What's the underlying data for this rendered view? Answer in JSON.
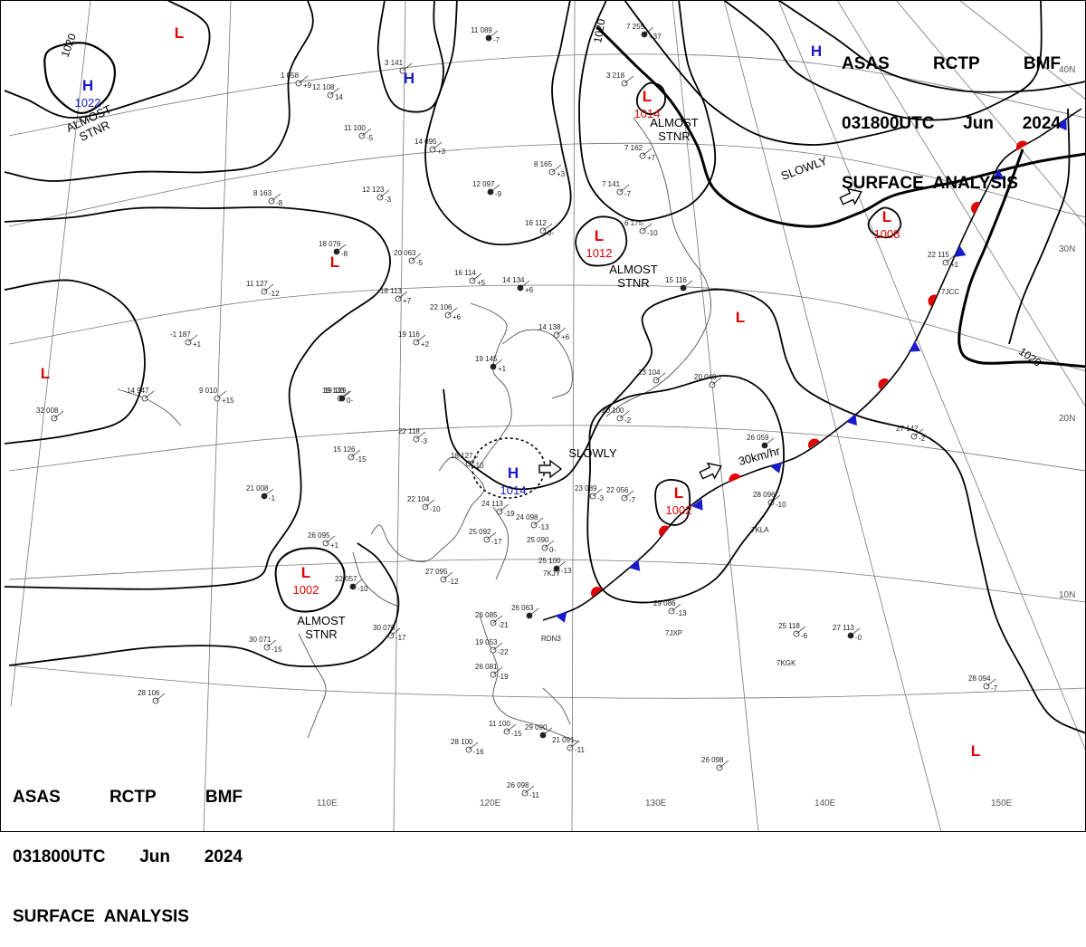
{
  "header_top_right": {
    "line1": [
      "ASAS",
      "RCTP",
      "BMF"
    ],
    "line2": [
      "031800UTC",
      "Jun",
      "2024"
    ],
    "line3": "SURFACE  ANALYSIS"
  },
  "header_bottom_left": {
    "line1": [
      "ASAS",
      "RCTP",
      "BMF"
    ],
    "line2": [
      "031800UTC",
      "Jun",
      "2024"
    ],
    "line3": "SURFACE  ANALYSIS"
  },
  "longitude_labels": [
    "110E",
    "120E",
    "130E",
    "140E",
    "150E"
  ],
  "latitude_labels": [
    "40N",
    "30N",
    "20N",
    "10N"
  ],
  "colors": {
    "high": "#1a1acc",
    "low": "#e00000",
    "isobar": "#000000",
    "grid": "#777777",
    "coast": "#555555"
  },
  "pressure_centers": [
    {
      "type": "H",
      "value": "1022"
    },
    {
      "type": "H",
      "value": ""
    },
    {
      "type": "H",
      "value": ""
    },
    {
      "type": "H",
      "value": "1014"
    },
    {
      "type": "L",
      "value": ""
    },
    {
      "type": "L",
      "value": "1014"
    },
    {
      "type": "L",
      "value": "1012"
    },
    {
      "type": "L",
      "value": "1008"
    },
    {
      "type": "L",
      "value": ""
    },
    {
      "type": "L",
      "value": ""
    },
    {
      "type": "L",
      "value": ""
    },
    {
      "type": "L",
      "value": "1002"
    },
    {
      "type": "L",
      "value": "1002"
    },
    {
      "type": "L",
      "value": ""
    }
  ],
  "isobar_labels": [
    "1020",
    "1020",
    "1020"
  ],
  "annotations": [
    "ALMOST\nSTNR",
    "ALMOST\nSTNR",
    "ALMOST\nSTNR",
    "ALMOST\nSTNR",
    "SLOWLY",
    "SLOWLY",
    "30km/hr"
  ],
  "stations": [
    [
      "11 089",
      "-7"
    ],
    [
      "3 141",
      ""
    ],
    [
      "12 108",
      "14"
    ],
    [
      "11 100",
      "-5"
    ],
    [
      "14 095",
      "+3"
    ],
    [
      "12 097",
      "-9"
    ],
    [
      "12 123",
      "-3"
    ],
    [
      "8 165",
      "+3"
    ],
    [
      "8 163",
      "-8"
    ],
    [
      "16 112",
      "0-"
    ],
    [
      "18 076",
      "-8"
    ],
    [
      "20 063",
      "-5"
    ],
    [
      "16 114",
      "+5"
    ],
    [
      "11 127",
      "-12"
    ],
    [
      "18 113",
      "+7"
    ],
    [
      "14 134",
      "+6"
    ],
    [
      "22 106",
      "+6"
    ],
    [
      "14 138",
      "+6"
    ],
    [
      "19 116",
      "+2"
    ],
    [
      "-1 187",
      "+1"
    ],
    [
      "19 145",
      "+1"
    ],
    [
      "19 130",
      ""
    ],
    [
      "9 010",
      "+15"
    ],
    [
      "14 947",
      ""
    ],
    [
      "32 008",
      ""
    ],
    [
      "19 129",
      "0-"
    ],
    [
      "22 118",
      "-3"
    ],
    [
      "15 126",
      "-15"
    ],
    [
      "18 127",
      "-10"
    ],
    [
      "22 104",
      "-10"
    ],
    [
      "21 008",
      "-1"
    ],
    [
      "24 113",
      "-19"
    ],
    [
      "24 098",
      "-13"
    ],
    [
      "25 092",
      "-17"
    ],
    [
      "25 090",
      "0-"
    ],
    [
      "25 100",
      "-13"
    ],
    [
      "23 089",
      "-3"
    ],
    [
      "22 056",
      "-7"
    ],
    [
      "27 095",
      "-12"
    ],
    [
      "26 085",
      "-21"
    ],
    [
      "26 063",
      ""
    ],
    [
      "19 053",
      "-22"
    ],
    [
      "26 081",
      "-19"
    ],
    [
      "30 071",
      "-15"
    ],
    [
      "30 070",
      "-17"
    ],
    [
      "22 057",
      "-10"
    ],
    [
      "26 095",
      "+1"
    ],
    [
      "28 106",
      ""
    ],
    [
      "11 100",
      "-15"
    ],
    [
      "28 100",
      "-16"
    ],
    [
      "29 090",
      ""
    ],
    [
      "21 091",
      "-11"
    ],
    [
      "26 098",
      "-11"
    ],
    [
      "26 098",
      ""
    ],
    [
      "25 118",
      "-6"
    ],
    [
      "27 113",
      "-0"
    ],
    [
      "28 094",
      "-7"
    ],
    [
      "29 086",
      "-13"
    ],
    [
      "27 142",
      "-2"
    ],
    [
      "22 115",
      "+1"
    ],
    [
      "15 116",
      ""
    ],
    [
      "6 175",
      "-10"
    ],
    [
      "7 141",
      "-7"
    ],
    [
      "7 162",
      "+7"
    ],
    [
      "3 218",
      ""
    ],
    [
      "7 255",
      "+37"
    ],
    [
      "1 058",
      "+9"
    ],
    [
      "20 100",
      "-2"
    ],
    [
      "23 104",
      ""
    ],
    [
      "28 096",
      "-10"
    ],
    [
      "26 059",
      ""
    ],
    [
      "20 040",
      ""
    ]
  ],
  "station_ids": [
    "RDN3",
    "7KJY",
    "7KLA",
    "7JXP",
    "7KGK",
    "7JCC"
  ]
}
